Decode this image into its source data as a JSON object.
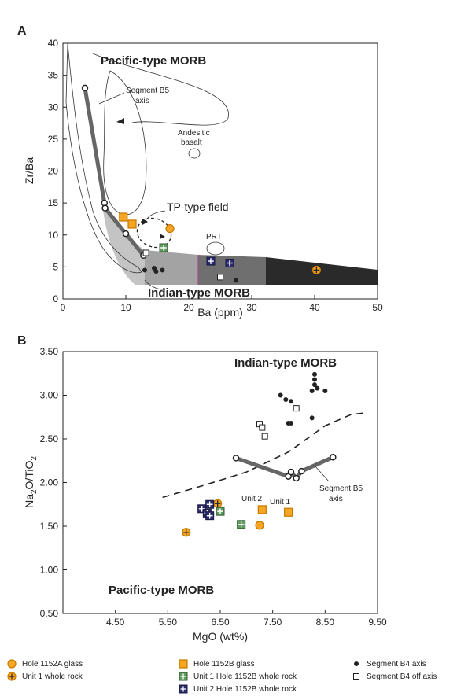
{
  "chart_data": [
    {
      "panel_label": "A",
      "type": "scatter",
      "xlabel": "Ba (ppm)",
      "ylabel": "Zr/Ba",
      "xlim": [
        0,
        50
      ],
      "ylim": [
        0,
        40
      ],
      "xticks": [
        0,
        10,
        20,
        30,
        40,
        50
      ],
      "yticks": [
        0,
        5,
        10,
        15,
        20,
        25,
        30,
        35,
        40
      ],
      "annotations": {
        "pacific": "Pacific-type MORB",
        "indian": "Indian-type MORB",
        "segment_b5": "Segment B5",
        "axis": "axis",
        "andesitic": "Andesitic",
        "basalt": "basalt",
        "tp_field": "TP-type field",
        "prt": "PRT"
      },
      "segment_b5_axis": [
        [
          3.5,
          33
        ],
        [
          6.6,
          15
        ],
        [
          6.7,
          14.2
        ],
        [
          10,
          10.2
        ],
        [
          12.8,
          6.8
        ]
      ],
      "series": [
        {
          "key": "hole1152a_glass",
          "points": [
            [
              17,
              11
            ]
          ]
        },
        {
          "key": "unit1_whole_rock",
          "points": [
            [
              40.3,
              4.5
            ]
          ]
        },
        {
          "key": "hole1152b_glass",
          "points": [
            [
              9.6,
              12.8
            ],
            [
              11,
              11.7
            ]
          ]
        },
        {
          "key": "unit1_1152b_whole_rock",
          "points": [
            [
              16,
              8
            ]
          ]
        },
        {
          "key": "unit2_1152b_whole_rock",
          "points": [
            [
              23.5,
              5.9
            ],
            [
              26.5,
              5.6
            ]
          ]
        },
        {
          "key": "seg_b4_axis",
          "points": [
            [
              13,
              4.5
            ],
            [
              14.5,
              4.8
            ],
            [
              14.8,
              4.3
            ],
            [
              15.8,
              4.5
            ],
            [
              27.5,
              2.9
            ]
          ]
        },
        {
          "key": "seg_b4_off_axis",
          "points": [
            [
              13.2,
              7.2
            ],
            [
              25,
              3.4
            ]
          ]
        }
      ]
    },
    {
      "panel_label": "B",
      "type": "scatter",
      "xlabel": "MgO (wt%)",
      "ylabel": "Na2O/TiO2",
      "xlim": [
        3.5,
        9.5
      ],
      "ylim": [
        0.5,
        3.5
      ],
      "xticks": [
        "4.50",
        "5.50",
        "6.50",
        "7.50",
        "8.50",
        "9.50"
      ],
      "xtick_values": [
        4.5,
        5.5,
        6.5,
        7.5,
        8.5,
        9.5
      ],
      "yticks": [
        "0.50",
        "1.00",
        "1.50",
        "2.00",
        "2.50",
        "3.00",
        "3.50"
      ],
      "ytick_values": [
        0.5,
        1.0,
        1.5,
        2.0,
        2.5,
        3.0,
        3.5
      ],
      "annotations": {
        "indian": "Indian-type MORB",
        "pacific": "Pacific-type MORB",
        "segment_b5": "Segment B5",
        "axis": "axis",
        "unit2": "Unit 2",
        "unit1": "Unit 1"
      },
      "dashed_boundary": [
        [
          5.4,
          1.83
        ],
        [
          6.2,
          1.97
        ],
        [
          7.0,
          2.12
        ],
        [
          7.8,
          2.35
        ],
        [
          8.5,
          2.65
        ],
        [
          9.0,
          2.78
        ],
        [
          9.3,
          2.8
        ]
      ],
      "segment_b5_axis": [
        [
          6.8,
          2.28
        ],
        [
          7.8,
          2.07
        ],
        [
          7.85,
          2.12
        ],
        [
          7.95,
          2.05
        ],
        [
          8.05,
          2.13
        ],
        [
          8.65,
          2.29
        ]
      ],
      "series": [
        {
          "key": "hole1152a_glass",
          "points": [
            [
              7.25,
              1.51
            ]
          ]
        },
        {
          "key": "unit1_whole_rock",
          "points": [
            [
              5.85,
              1.43
            ],
            [
              6.45,
              1.76
            ]
          ]
        },
        {
          "key": "hole1152b_glass",
          "points": [
            [
              7.3,
              1.69
            ],
            [
              7.8,
              1.66
            ]
          ]
        },
        {
          "key": "unit1_1152b_whole_rock",
          "points": [
            [
              6.5,
              1.67
            ],
            [
              6.9,
              1.52
            ]
          ]
        },
        {
          "key": "unit2_1152b_whole_rock",
          "points": [
            [
              6.15,
              1.7
            ],
            [
              6.25,
              1.65
            ],
            [
              6.3,
              1.75
            ],
            [
              6.3,
              1.62
            ]
          ]
        },
        {
          "key": "seg_b4_axis",
          "points": [
            [
              7.65,
              3.0
            ],
            [
              7.75,
              2.95
            ],
            [
              7.85,
              2.93
            ],
            [
              7.8,
              2.68
            ],
            [
              7.85,
              2.68
            ],
            [
              8.25,
              2.74
            ],
            [
              8.25,
              3.05
            ],
            [
              8.3,
              3.24
            ],
            [
              8.3,
              3.12
            ],
            [
              8.3,
              3.18
            ],
            [
              8.35,
              3.08
            ],
            [
              8.5,
              3.05
            ]
          ]
        },
        {
          "key": "seg_b4_off_axis",
          "points": [
            [
              7.25,
              2.67
            ],
            [
              7.3,
              2.63
            ],
            [
              7.35,
              2.53
            ],
            [
              7.95,
              2.85
            ]
          ]
        }
      ]
    }
  ],
  "legend": {
    "hole1152a_glass": "Hole 1152A glass",
    "unit1_whole_rock": "Unit 1 whole rock",
    "hole1152b_glass": "Hole 1152B glass",
    "unit1_1152b_whole_rock": "Unit 1 Hole 1152B whole rock",
    "unit2_1152b_whole_rock": "Unit 2 Hole 1152B whole rock",
    "seg_b4_axis": "Segment B4 axis",
    "seg_b4_off_axis": "Segment B4 off axis"
  },
  "colors": {
    "orange": "#f5a623",
    "orange_stroke": "#c87800",
    "green": "#5f9a5f",
    "navy": "#2b2b6e",
    "black": "#222222",
    "segment_line": "#666666"
  }
}
